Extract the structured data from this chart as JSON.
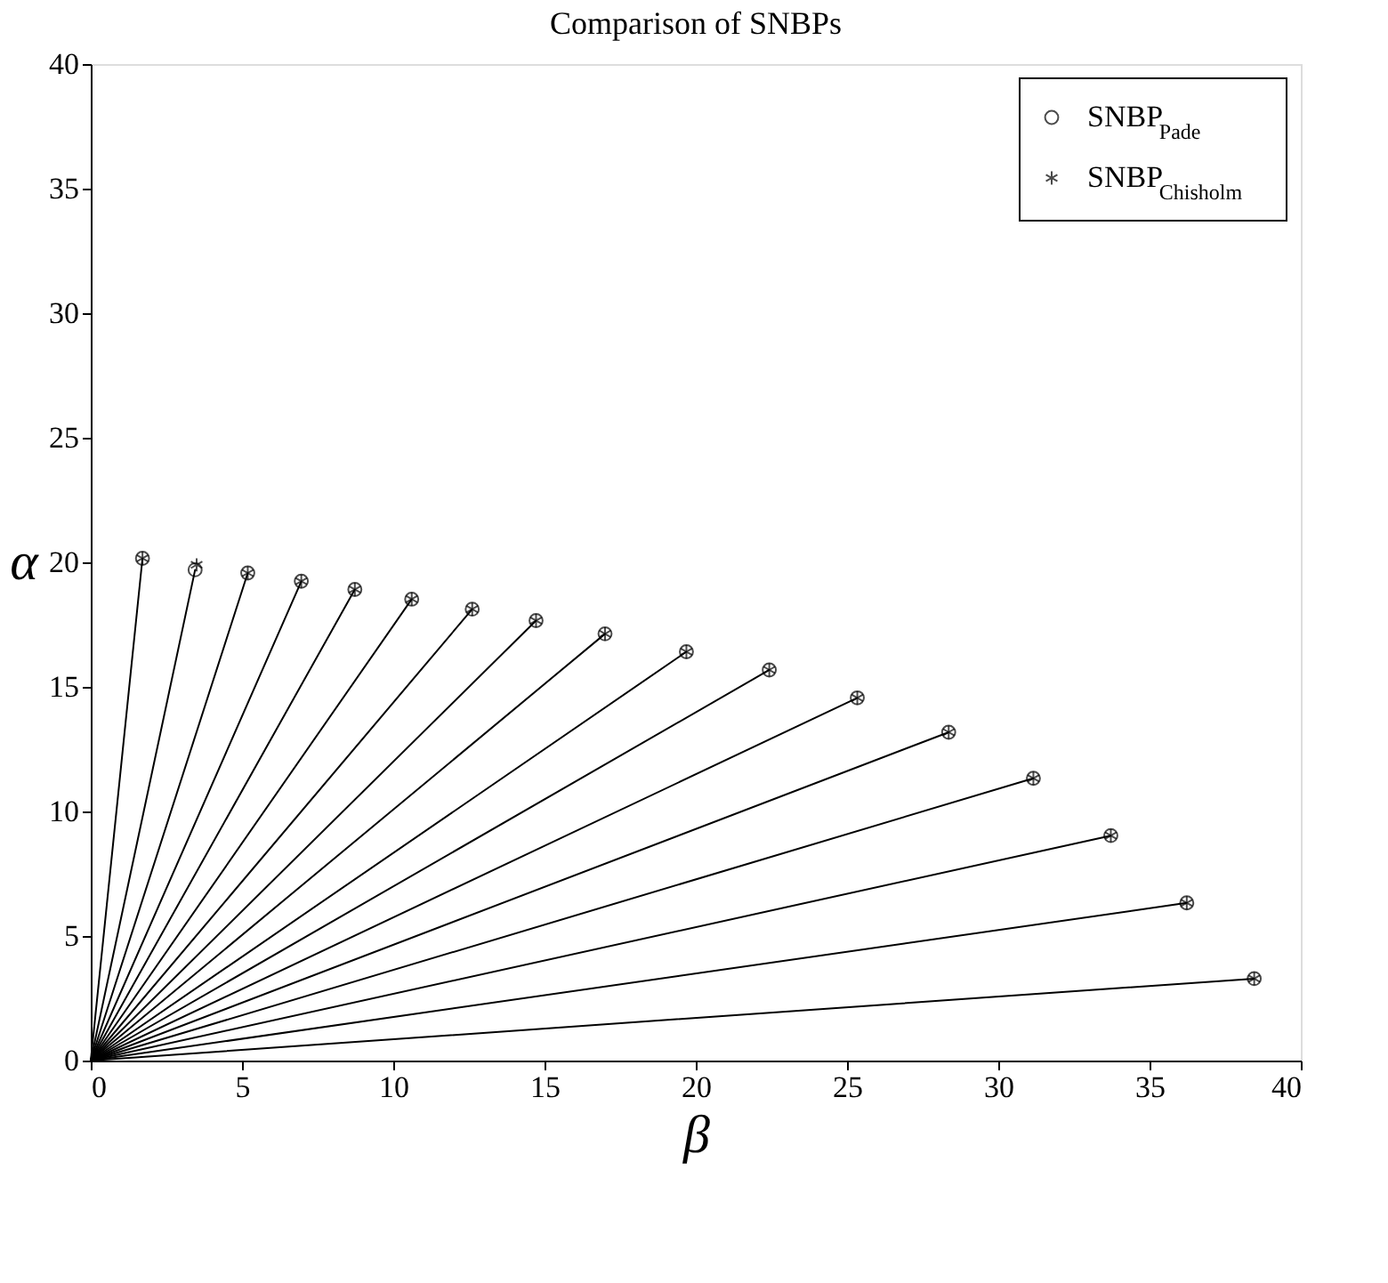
{
  "chart_data": {
    "type": "scatter",
    "title": "Comparison of SNBPs",
    "xlabel": "β",
    "ylabel": "α",
    "xlim": [
      0,
      40
    ],
    "ylim": [
      0,
      40
    ],
    "xticks": [
      0,
      5,
      10,
      15,
      20,
      25,
      30,
      35,
      40
    ],
    "yticks": [
      0,
      5,
      10,
      15,
      20,
      25,
      30,
      35,
      40
    ],
    "grid": false,
    "legend": "top right",
    "series": [
      {
        "type": "line",
        "color": "#000000",
        "marker": "none",
        "x": [
          0,
          1.71
        ],
        "values": [
          0,
          20.16
        ]
      },
      {
        "type": "line",
        "color": "#000000",
        "marker": "none",
        "x": [
          0,
          3.45
        ],
        "values": [
          0,
          19.7
        ]
      },
      {
        "type": "line",
        "color": "#000000",
        "marker": "none",
        "x": [
          0,
          5.19
        ],
        "values": [
          0,
          19.57
        ]
      },
      {
        "type": "line",
        "color": "#000000",
        "marker": "none",
        "x": [
          0,
          6.96
        ],
        "values": [
          0,
          19.24
        ]
      },
      {
        "type": "line",
        "color": "#000000",
        "marker": "none",
        "x": [
          0,
          8.73
        ],
        "values": [
          0,
          18.91
        ]
      },
      {
        "type": "line",
        "color": "#000000",
        "marker": "none",
        "x": [
          0,
          10.61
        ],
        "values": [
          0,
          18.52
        ]
      },
      {
        "type": "line",
        "color": "#000000",
        "marker": "none",
        "x": [
          0,
          12.61
        ],
        "values": [
          0,
          18.12
        ]
      },
      {
        "type": "line",
        "color": "#000000",
        "marker": "none",
        "x": [
          0,
          14.72
        ],
        "values": [
          0,
          17.66
        ]
      },
      {
        "type": "line",
        "color": "#000000",
        "marker": "none",
        "x": [
          0,
          17.0
        ],
        "values": [
          0,
          17.13
        ]
      },
      {
        "type": "line",
        "color": "#000000",
        "marker": "none",
        "x": [
          0,
          19.69
        ],
        "values": [
          0,
          16.41
        ]
      },
      {
        "type": "line",
        "color": "#000000",
        "marker": "none",
        "x": [
          0,
          22.43
        ],
        "values": [
          0,
          15.68
        ]
      },
      {
        "type": "line",
        "color": "#000000",
        "marker": "none",
        "x": [
          0,
          25.34
        ],
        "values": [
          0,
          14.56
        ]
      },
      {
        "type": "line",
        "color": "#000000",
        "marker": "none",
        "x": [
          0,
          28.36
        ],
        "values": [
          0,
          13.18
        ]
      },
      {
        "type": "line",
        "color": "#000000",
        "marker": "none",
        "x": [
          0,
          31.16
        ],
        "values": [
          0,
          11.33
        ]
      },
      {
        "type": "line",
        "color": "#000000",
        "marker": "none",
        "x": [
          0,
          33.72
        ],
        "values": [
          0,
          9.03
        ]
      },
      {
        "type": "line",
        "color": "#000000",
        "marker": "none",
        "x": [
          0,
          36.23
        ],
        "values": [
          0,
          6.33
        ]
      },
      {
        "type": "line",
        "color": "#000000",
        "marker": "none",
        "x": [
          0,
          38.46
        ],
        "values": [
          0,
          3.29
        ]
      },
      {
        "name": "SNBP$_{Pade}$",
        "color": "#000000",
        "marker": "circle",
        "x": [
          1.71,
          3.45,
          5.19,
          6.96,
          8.73,
          10.61,
          12.61,
          14.72,
          17.0,
          19.69,
          22.43,
          25.34,
          28.36,
          31.16,
          33.72,
          36.23,
          38.46
        ],
        "values": [
          20.16,
          19.7,
          19.57,
          19.24,
          18.91,
          18.52,
          18.12,
          17.66,
          17.13,
          16.41,
          15.68,
          14.56,
          13.18,
          11.33,
          9.03,
          6.33,
          3.29
        ]
      },
      {
        "name": "SNBP$_{Chisholm}$",
        "color": "#000000",
        "marker": "cross",
        "x": [
          1.71,
          3.5,
          5.19,
          6.96,
          8.73,
          10.61,
          12.61,
          14.72,
          17.0,
          19.69,
          22.43,
          25.34,
          28.36,
          31.16,
          33.72,
          36.23,
          38.46
        ],
        "values": [
          20.16,
          19.9,
          19.57,
          19.24,
          18.91,
          18.52,
          18.12,
          17.66,
          17.13,
          16.41,
          15.68,
          14.56,
          13.18,
          11.33,
          9.03,
          6.33,
          3.29
        ]
      }
    ]
  }
}
